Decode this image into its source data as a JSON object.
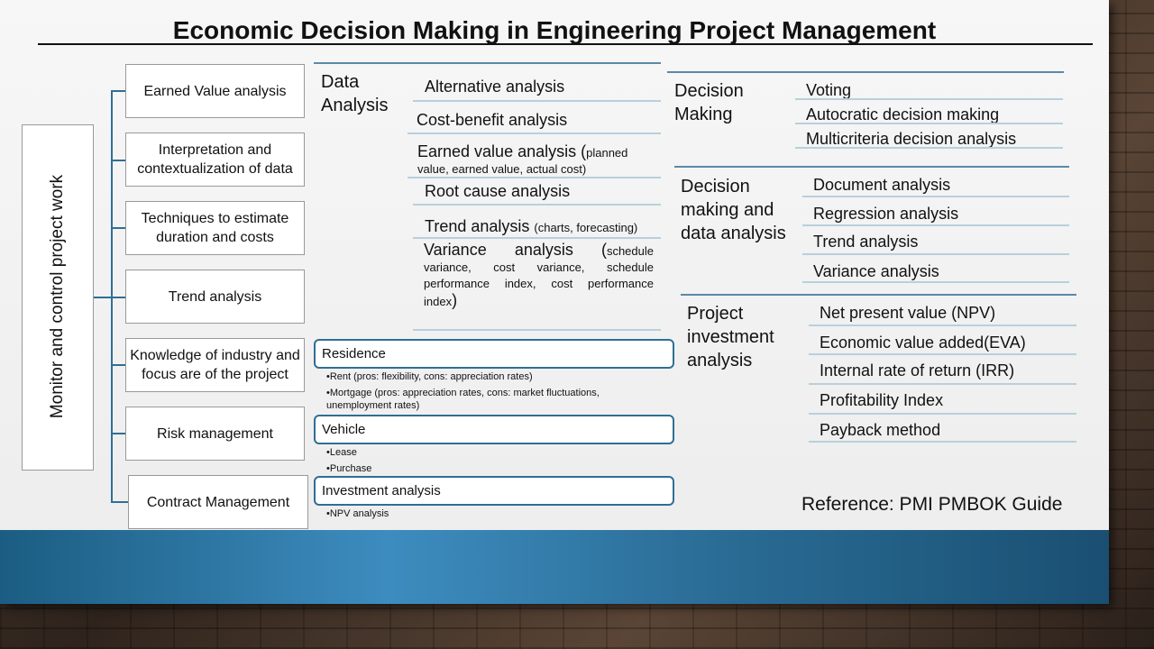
{
  "title": "Economic Decision Making in Engineering Project Management",
  "side_label": "Monitor and control project work",
  "left_items": [
    "Earned Value analysis",
    "Interpretation and contextualization of data",
    "Techniques to estimate duration and costs",
    "Trend analysis",
    "Knowledge of industry and focus are of the project",
    "Risk management",
    "Contract Management"
  ],
  "data_analysis": {
    "heading": "Data Analysis",
    "items": {
      "alternative": "Alternative analysis",
      "cost_benefit": "Cost-benefit analysis",
      "earned_value": "Earned value analysis (",
      "earned_value_detail": "planned value, earned value, actual cost)",
      "root_cause": "Root cause analysis",
      "trend": "Trend analysis ",
      "trend_detail": "(charts, forecasting)",
      "variance": "Variance analysis (",
      "variance_detail": "schedule variance, cost variance, schedule performance index, cost performance index",
      "variance_close": ")"
    }
  },
  "decision_making": {
    "heading": "Decision Making",
    "items": [
      "Voting",
      "Autocratic decision making",
      "Multicriteria decision analysis"
    ]
  },
  "decision_data": {
    "heading": "Decision making and data analysis",
    "items": [
      "Document analysis",
      "Regression analysis",
      "Trend analysis",
      "Variance analysis"
    ]
  },
  "project_investment": {
    "heading": "Project investment analysis",
    "items": [
      "Net present value (NPV)",
      "Economic value added(EVA)",
      "Internal rate of return (IRR)",
      "Profitability Index",
      "Payback method"
    ]
  },
  "residence": {
    "label": "Residence",
    "bullets": [
      "•Rent (pros: flexibility, cons: appreciation rates)",
      "•Mortgage (pros: appreciation rates, cons: market fluctuations, unemployment rates)"
    ]
  },
  "vehicle": {
    "label": "Vehicle",
    "bullets": [
      "•Lease",
      "•Purchase"
    ]
  },
  "investment": {
    "label": "Investment analysis",
    "bullets": [
      "•NPV analysis"
    ]
  },
  "reference": "Reference: PMI PMBOK Guide"
}
